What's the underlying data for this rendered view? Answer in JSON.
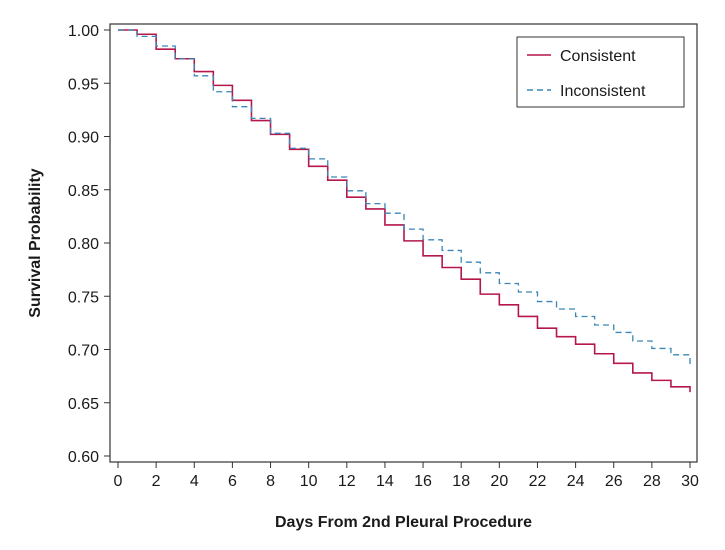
{
  "chart_data": {
    "type": "line",
    "xlabel": "Days From 2nd Pleural Procedure",
    "ylabel": "Survival Probability",
    "xlim": [
      0,
      30
    ],
    "ylim": [
      0.6,
      1.0
    ],
    "x_ticks": [
      0,
      2,
      4,
      6,
      8,
      10,
      12,
      14,
      16,
      18,
      20,
      22,
      24,
      26,
      28,
      30
    ],
    "y_ticks": [
      0.6,
      0.65,
      0.7,
      0.75,
      0.8,
      0.85,
      0.9,
      0.95,
      1.0
    ],
    "grid": false,
    "legend_position": "top-right",
    "step": true,
    "x": [
      0,
      1,
      2,
      3,
      4,
      5,
      6,
      7,
      8,
      9,
      10,
      11,
      12,
      13,
      14,
      15,
      16,
      17,
      18,
      19,
      20,
      21,
      22,
      23,
      24,
      25,
      26,
      27,
      28,
      29,
      30
    ],
    "series": [
      {
        "name": "Consistent",
        "color": "#b5174b",
        "dash": "solid",
        "values": [
          1.0,
          0.996,
          0.982,
          0.973,
          0.961,
          0.948,
          0.934,
          0.915,
          0.902,
          0.888,
          0.872,
          0.859,
          0.843,
          0.832,
          0.817,
          0.802,
          0.788,
          0.777,
          0.766,
          0.752,
          0.742,
          0.731,
          0.72,
          0.712,
          0.705,
          0.696,
          0.687,
          0.678,
          0.671,
          0.665,
          0.66
        ]
      },
      {
        "name": "Inconsistent",
        "color": "#3a86b8",
        "dash": "dashed",
        "values": [
          1.0,
          0.994,
          0.985,
          0.973,
          0.957,
          0.942,
          0.928,
          0.917,
          0.903,
          0.889,
          0.879,
          0.862,
          0.849,
          0.837,
          0.828,
          0.813,
          0.803,
          0.793,
          0.782,
          0.772,
          0.762,
          0.754,
          0.745,
          0.738,
          0.731,
          0.723,
          0.716,
          0.708,
          0.701,
          0.695,
          0.686
        ]
      }
    ]
  }
}
